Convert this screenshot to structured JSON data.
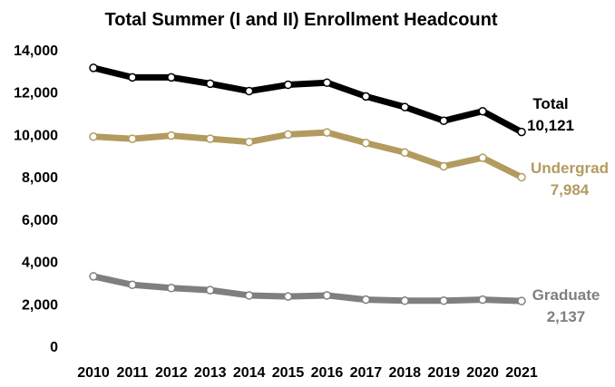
{
  "chart_data": {
    "type": "line",
    "title": "Total Summer (I and II) Enrollment Headcount",
    "xlabel": "",
    "ylabel": "",
    "ylim": [
      0,
      14000
    ],
    "yticks": [
      "0",
      "2,000",
      "4,000",
      "6,000",
      "8,000",
      "10,000",
      "12,000",
      "14,000"
    ],
    "categories": [
      "2010",
      "2011",
      "2012",
      "2013",
      "2014",
      "2015",
      "2016",
      "2017",
      "2018",
      "2019",
      "2020",
      "2021"
    ],
    "grid": false,
    "legend": "none (end-of-line labels)",
    "series": [
      {
        "name": "Total",
        "color": "#000000",
        "values": [
          13150,
          12700,
          12700,
          12400,
          12050,
          12350,
          12450,
          11800,
          11300,
          10650,
          11100,
          10121
        ],
        "end_value_label": "10,121"
      },
      {
        "name": "Undergrad",
        "color": "#B39B5F",
        "values": [
          9900,
          9800,
          9950,
          9800,
          9650,
          10000,
          10100,
          9600,
          9150,
          8500,
          8900,
          7984
        ],
        "end_value_label": "7,984"
      },
      {
        "name": "Graduate",
        "color": "#7F7F7F",
        "values": [
          3300,
          2900,
          2750,
          2650,
          2400,
          2350,
          2400,
          2200,
          2150,
          2150,
          2200,
          2137
        ],
        "end_value_label": "2,137"
      }
    ]
  }
}
